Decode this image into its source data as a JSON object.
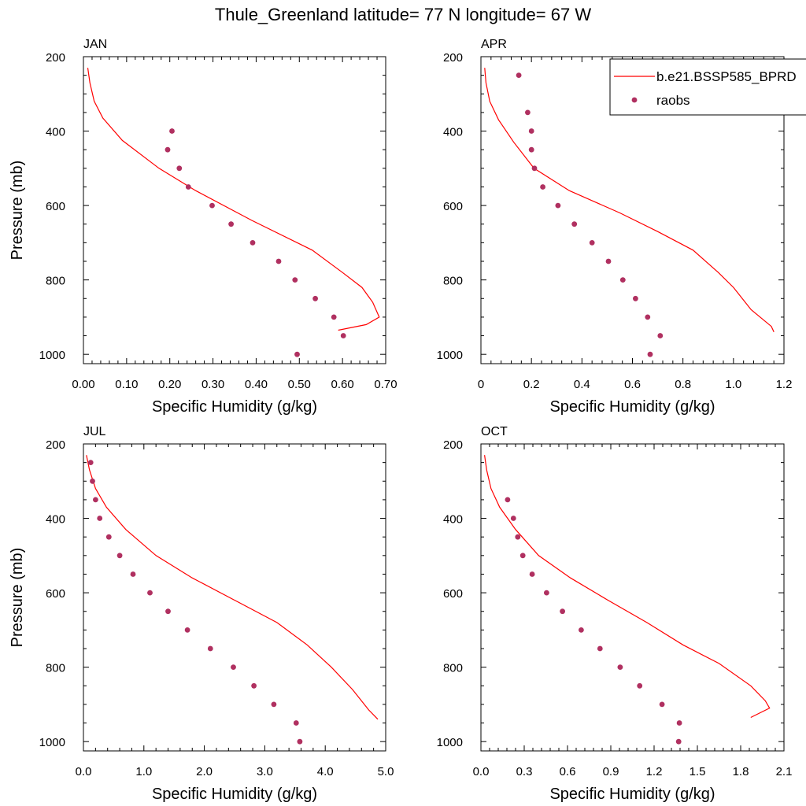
{
  "title": "Thule_Greenland  latitude= 77 N longitude= 67 W",
  "legend": {
    "model_label": "b.e21.BSSP585_BPRD",
    "obs_label": "raobs",
    "placement": "top-right of APR panel"
  },
  "colors": {
    "model": "#ff0000",
    "obs": "#b03060",
    "axis": "#000000"
  },
  "chart_data": [
    {
      "type": "line",
      "panel": "JAN",
      "title": "JAN",
      "xlabel": "Specific Humidity (g/kg)",
      "ylabel": "Pressure (mb)",
      "xlim": [
        0,
        0.7
      ],
      "ylim": [
        1025,
        200
      ],
      "xticks": [
        "0.00",
        "0.10",
        "0.20",
        "0.30",
        "0.40",
        "0.50",
        "0.60",
        "0.70"
      ],
      "yticks": [
        "200",
        "400",
        "600",
        "800",
        "1000"
      ],
      "series": [
        {
          "name": "b.e21.BSSP585_BPRD",
          "kind": "line",
          "x": [
            0.01,
            0.015,
            0.025,
            0.045,
            0.09,
            0.175,
            0.26,
            0.39,
            0.53,
            0.6,
            0.645,
            0.67,
            0.685,
            0.655,
            0.59
          ],
          "y": [
            230,
            270,
            320,
            365,
            425,
            500,
            560,
            640,
            720,
            780,
            820,
            860,
            900,
            920,
            935
          ]
        },
        {
          "name": "raobs",
          "kind": "scatter",
          "x": [
            0.205,
            0.195,
            0.222,
            0.243,
            0.298,
            0.342,
            0.392,
            0.452,
            0.49,
            0.537,
            0.58,
            0.602,
            0.495
          ],
          "y": [
            400,
            450,
            500,
            550,
            600,
            650,
            700,
            750,
            800,
            850,
            900,
            950,
            1000
          ]
        }
      ]
    },
    {
      "type": "line",
      "panel": "APR",
      "title": "APR",
      "xlabel": "Specific Humidity (g/kg)",
      "ylabel": "",
      "xlim": [
        0,
        1.2
      ],
      "ylim": [
        1025,
        200
      ],
      "xticks": [
        "0",
        "0.2",
        "0.4",
        "0.6",
        "0.8",
        "1.0",
        "1.2"
      ],
      "yticks": [
        "200",
        "400",
        "600",
        "800",
        "1000"
      ],
      "series": [
        {
          "name": "b.e21.BSSP585_BPRD",
          "kind": "line",
          "x": [
            0.015,
            0.02,
            0.035,
            0.07,
            0.13,
            0.21,
            0.35,
            0.55,
            0.7,
            0.84,
            0.94,
            1.0,
            1.07,
            1.15,
            1.16
          ],
          "y": [
            230,
            270,
            320,
            370,
            430,
            500,
            560,
            620,
            670,
            720,
            780,
            820,
            880,
            925,
            940
          ]
        },
        {
          "name": "raobs",
          "kind": "scatter",
          "x": [
            0.15,
            0.185,
            0.2,
            0.2,
            0.212,
            0.245,
            0.305,
            0.37,
            0.44,
            0.505,
            0.562,
            0.612,
            0.66,
            0.71,
            0.67
          ],
          "y": [
            250,
            350,
            400,
            450,
            500,
            550,
            600,
            650,
            700,
            750,
            800,
            850,
            900,
            950,
            1000
          ]
        }
      ]
    },
    {
      "type": "line",
      "panel": "JUL",
      "title": "JUL",
      "xlabel": "Specific Humidity (g/kg)",
      "ylabel": "Pressure (mb)",
      "xlim": [
        0,
        5.0
      ],
      "ylim": [
        1025,
        200
      ],
      "xticks": [
        "0.0",
        "1.0",
        "2.0",
        "3.0",
        "4.0",
        "5.0"
      ],
      "yticks": [
        "200",
        "400",
        "600",
        "800",
        "1000"
      ],
      "series": [
        {
          "name": "b.e21.BSSP585_BPRD",
          "kind": "line",
          "x": [
            0.05,
            0.1,
            0.2,
            0.38,
            0.7,
            1.2,
            1.8,
            2.5,
            3.2,
            3.7,
            4.1,
            4.45,
            4.72,
            4.87
          ],
          "y": [
            230,
            270,
            320,
            370,
            430,
            500,
            560,
            620,
            680,
            740,
            800,
            860,
            915,
            940
          ]
        },
        {
          "name": "raobs",
          "kind": "scatter",
          "x": [
            0.12,
            0.15,
            0.2,
            0.27,
            0.42,
            0.6,
            0.82,
            1.1,
            1.4,
            1.72,
            2.1,
            2.48,
            2.82,
            3.15,
            3.52,
            3.58
          ],
          "y": [
            250,
            300,
            350,
            400,
            450,
            500,
            550,
            600,
            650,
            700,
            750,
            800,
            850,
            900,
            950,
            1000
          ]
        }
      ]
    },
    {
      "type": "line",
      "panel": "OCT",
      "title": "OCT",
      "xlabel": "Specific Humidity (g/kg)",
      "ylabel": "",
      "xlim": [
        0,
        2.1
      ],
      "ylim": [
        1025,
        200
      ],
      "xticks": [
        "0.0",
        "0.3",
        "0.6",
        "0.9",
        "1.2",
        "1.5",
        "1.8",
        "2.1"
      ],
      "yticks": [
        "200",
        "400",
        "600",
        "800",
        "1000"
      ],
      "series": [
        {
          "name": "b.e21.BSSP585_BPRD",
          "kind": "line",
          "x": [
            0.025,
            0.04,
            0.07,
            0.13,
            0.24,
            0.4,
            0.62,
            0.88,
            1.15,
            1.4,
            1.65,
            1.87,
            1.97,
            2.0,
            1.87
          ],
          "y": [
            230,
            270,
            320,
            370,
            430,
            500,
            560,
            620,
            680,
            740,
            790,
            850,
            890,
            910,
            935
          ]
        },
        {
          "name": "raobs",
          "kind": "scatter",
          "x": [
            0.185,
            0.225,
            0.255,
            0.29,
            0.355,
            0.455,
            0.565,
            0.695,
            0.825,
            0.965,
            1.1,
            1.255,
            1.375,
            1.37
          ],
          "y": [
            350,
            400,
            450,
            500,
            550,
            600,
            650,
            700,
            750,
            800,
            850,
            900,
            950,
            1000
          ]
        }
      ]
    }
  ]
}
